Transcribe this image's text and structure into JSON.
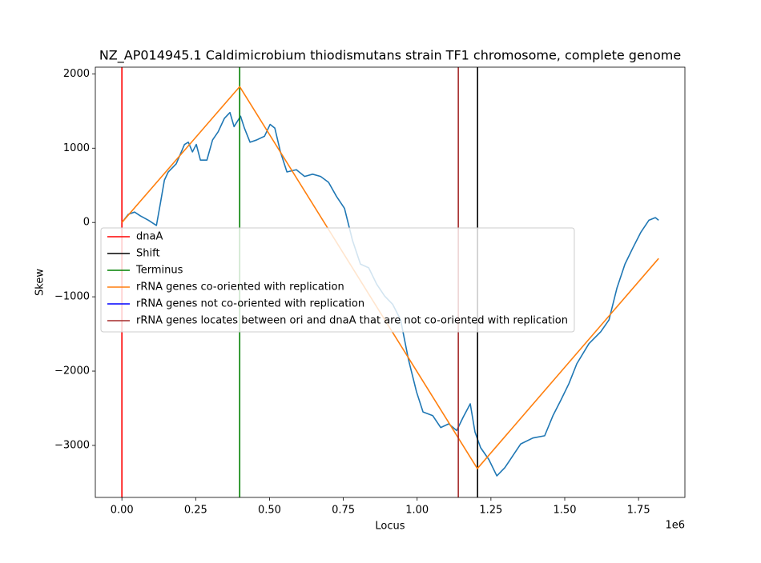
{
  "chart_data": {
    "type": "line",
    "title": "NZ_AP014945.1 Caldimicrobium thiodismutans strain TF1 chromosome, complete genome",
    "xlabel": "Locus",
    "ylabel": "Skew",
    "x_offset_label": "1e6",
    "xlim": [
      -90000,
      1907000
    ],
    "ylim": [
      -3700,
      2090
    ],
    "xticks": [
      {
        "value": 0,
        "label": "0.00"
      },
      {
        "value": 250000,
        "label": "0.25"
      },
      {
        "value": 500000,
        "label": "0.50"
      },
      {
        "value": 750000,
        "label": "0.75"
      },
      {
        "value": 1000000,
        "label": "1.00"
      },
      {
        "value": 1250000,
        "label": "1.25"
      },
      {
        "value": 1500000,
        "label": "1.50"
      },
      {
        "value": 1750000,
        "label": "1.75"
      }
    ],
    "yticks": [
      {
        "value": -3000,
        "label": "−3000"
      },
      {
        "value": -2000,
        "label": "−2000"
      },
      {
        "value": -1000,
        "label": "−1000"
      },
      0,
      1000,
      2000
    ],
    "legend": "center left",
    "series": [
      {
        "kind": "line",
        "color": "#1f77b4",
        "x": [
          0,
          21700,
          43000,
          62000,
          90000,
          117000,
          130000,
          144000,
          157000,
          184000,
          212000,
          225000,
          239000,
          252000,
          266000,
          288000,
          307000,
          326000,
          347000,
          366000,
          380000,
          402000,
          415000,
          434000,
          456000,
          483000,
          502000,
          518000,
          537000,
          559000,
          591000,
          619000,
          646000,
          673000,
          700000,
          727000,
          754000,
          781000,
          808000,
          836000,
          863000,
          890000,
          917000,
          944000,
          971000,
          998000,
          1020000,
          1053000,
          1080000,
          1107000,
          1134000,
          1156000,
          1180000,
          1196000,
          1215000,
          1243000,
          1270000,
          1297000,
          1324000,
          1351000,
          1392000,
          1432000,
          1460000,
          1487000,
          1514000,
          1541000,
          1582000,
          1622000,
          1650000,
          1677000,
          1704000,
          1731000,
          1758000,
          1785000,
          1807000,
          1818000
        ],
        "values": [
          0,
          110,
          140,
          90,
          30,
          -40,
          250,
          570,
          680,
          790,
          1050,
          1080,
          950,
          1050,
          840,
          840,
          1110,
          1220,
          1400,
          1480,
          1290,
          1430,
          1270,
          1080,
          1110,
          1160,
          1320,
          1270,
          950,
          680,
          710,
          620,
          650,
          620,
          540,
          350,
          190,
          -240,
          -560,
          -610,
          -830,
          -990,
          -1100,
          -1310,
          -1850,
          -2280,
          -2550,
          -2600,
          -2760,
          -2710,
          -2800,
          -2620,
          -2440,
          -2820,
          -3030,
          -3190,
          -3410,
          -3300,
          -3140,
          -2980,
          -2900,
          -2870,
          -2600,
          -2390,
          -2170,
          -1900,
          -1630,
          -1470,
          -1310,
          -880,
          -560,
          -340,
          -130,
          30,
          65,
          30
        ]
      },
      {
        "kind": "vline",
        "name": "dnaA",
        "color": "#ff0000",
        "x": [
          0
        ]
      },
      {
        "kind": "vline",
        "name": "Shift",
        "color": "#000000",
        "x": [
          1204700
        ]
      },
      {
        "kind": "vline",
        "name": "Terminus",
        "color": "#008000",
        "x": [
          399000
        ]
      },
      {
        "kind": "line",
        "name": "rRNA genes co-oriented with replication",
        "color": "#ff7f0e",
        "x": [
          0,
          399000,
          1204000,
          1818000
        ],
        "values": [
          0,
          1828,
          -3312,
          -484
        ]
      },
      {
        "kind": "vline",
        "name": "rRNA genes not co-oriented with replication",
        "color": "#0000ff",
        "x": []
      },
      {
        "kind": "vline",
        "name": "rRNA genes locates between ori and dnaA that are not co-oriented with replication",
        "color": "#a52a2a",
        "x": [
          1139500
        ]
      }
    ]
  }
}
